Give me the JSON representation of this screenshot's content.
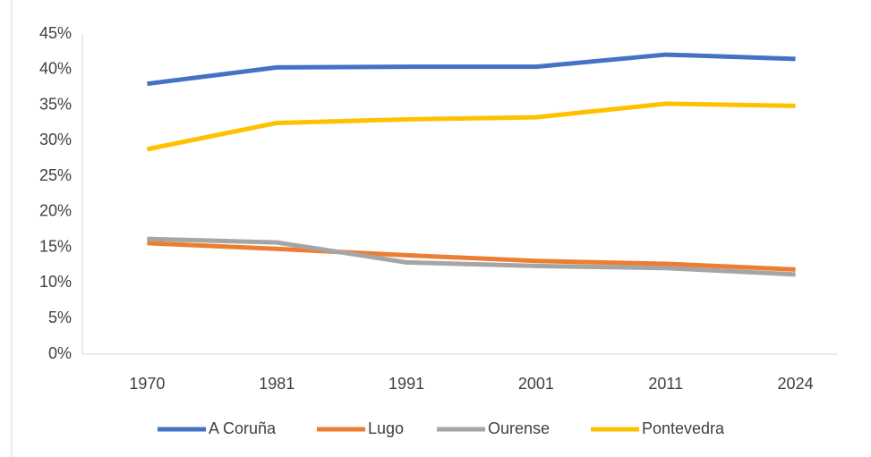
{
  "chart_data": {
    "type": "line",
    "categories": [
      "1970",
      "1981",
      "1991",
      "2001",
      "2011",
      "2024"
    ],
    "series": [
      {
        "name": "A Coruña",
        "color": "#4472c4",
        "values": [
          38.0,
          40.3,
          40.4,
          40.4,
          42.1,
          41.5
        ]
      },
      {
        "name": "Lugo",
        "color": "#ed7d31",
        "values": [
          15.6,
          14.8,
          13.9,
          13.1,
          12.7,
          11.9
        ]
      },
      {
        "name": "Ourense",
        "color": "#a5a5a5",
        "values": [
          16.2,
          15.7,
          12.9,
          12.4,
          12.1,
          11.2
        ]
      },
      {
        "name": "Pontevedra",
        "color": "#ffc000",
        "values": [
          28.8,
          32.5,
          33.0,
          33.3,
          35.2,
          34.9
        ]
      }
    ],
    "ylim": [
      0,
      45
    ],
    "yticks": [
      {
        "value": 0,
        "label": "0%"
      },
      {
        "value": 5,
        "label": "5%"
      },
      {
        "value": 10,
        "label": "10%"
      },
      {
        "value": 15,
        "label": "15%"
      },
      {
        "value": 20,
        "label": "20%"
      },
      {
        "value": 25,
        "label": "25%"
      },
      {
        "value": 30,
        "label": "30%"
      },
      {
        "value": 35,
        "label": "35%"
      },
      {
        "value": 40,
        "label": "40%"
      },
      {
        "value": 45,
        "label": "45%"
      }
    ],
    "grid": false,
    "legend": "bottom"
  }
}
